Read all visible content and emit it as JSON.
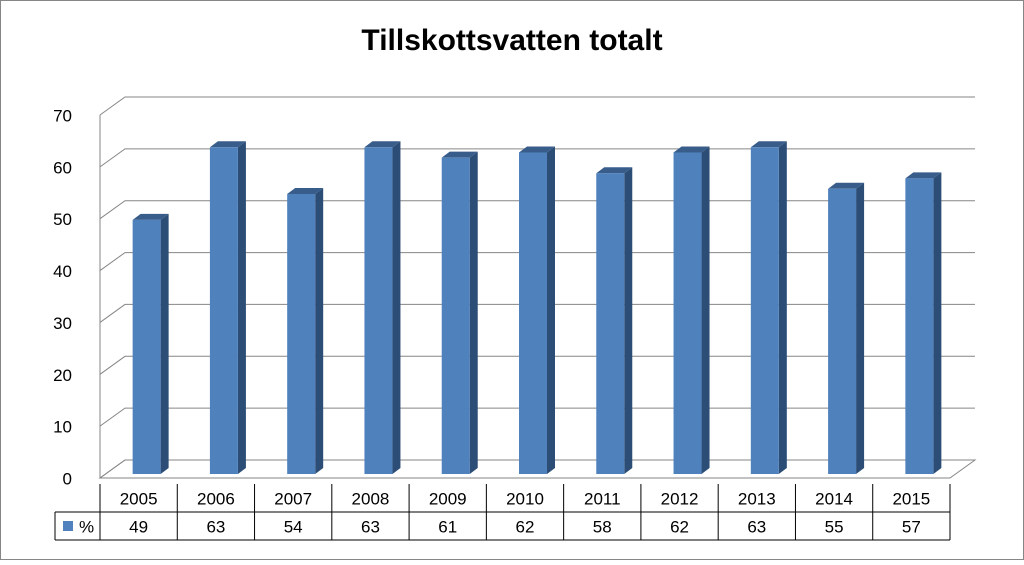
{
  "chart_data": {
    "type": "bar3d",
    "title": "Tillskottsvatten totalt",
    "categories": [
      "2005",
      "2006",
      "2007",
      "2008",
      "2009",
      "2010",
      "2011",
      "2012",
      "2013",
      "2014",
      "2015"
    ],
    "series": [
      {
        "name": "%",
        "color": "#4f81bd",
        "values": [
          49,
          63,
          54,
          63,
          61,
          62,
          58,
          62,
          63,
          55,
          57
        ]
      }
    ],
    "ylim": [
      0,
      70
    ],
    "yticks": [
      0,
      10,
      20,
      30,
      40,
      50,
      60,
      70
    ],
    "grid": true,
    "data_table": true
  }
}
